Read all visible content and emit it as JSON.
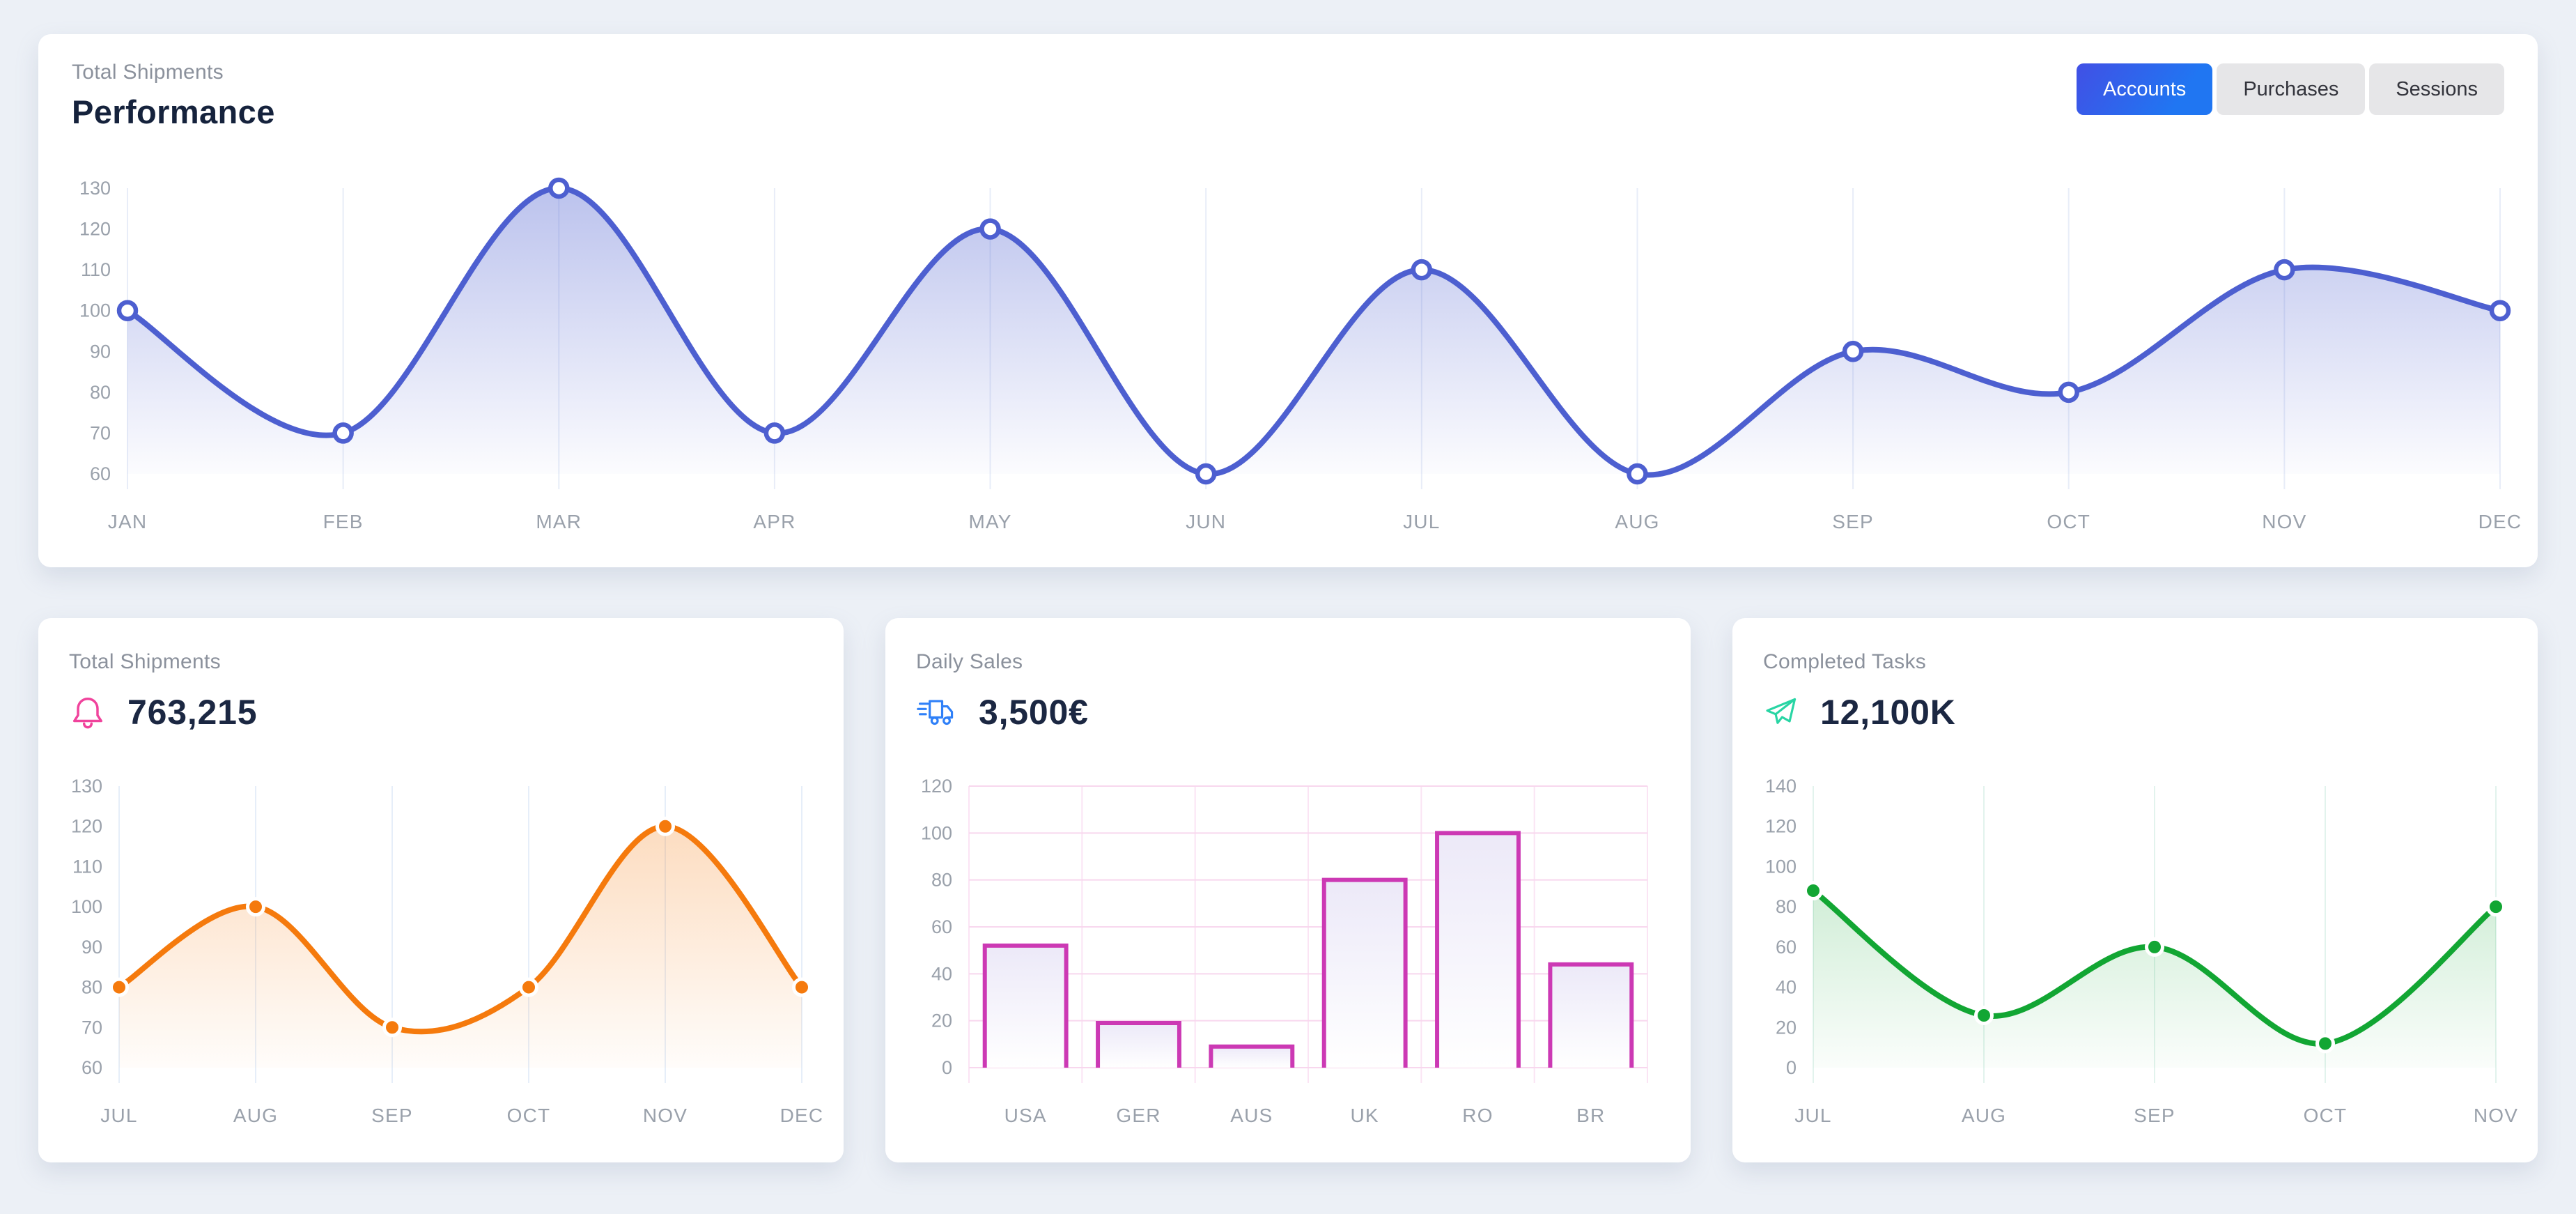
{
  "colors": {
    "label_gray": "#8b919c",
    "heading_navy": "#15223c",
    "value_navy": "#1b2742",
    "button_gradient_start": "#4150e5",
    "button_gradient_end": "#2076f2",
    "pink_icon": "#f0439c",
    "blue_icon": "#2f80f8",
    "teal_icon": "#28d5a4",
    "indigo_line": "#4d5fd0",
    "orange_line": "#f57a0d",
    "magenta_bar": "#cc39b4",
    "green_line": "#12a633"
  },
  "top_card": {
    "label": "Total Shipments",
    "title": "Performance",
    "buttons": [
      {
        "label": "Accounts",
        "active": true
      },
      {
        "label": "Purchases",
        "active": false
      },
      {
        "label": "Sessions",
        "active": false
      }
    ]
  },
  "cards": [
    {
      "label": "Total Shipments",
      "value": "763,215",
      "icon": "bell-icon"
    },
    {
      "label": "Daily Sales",
      "value": "3,500€",
      "icon": "shipping-truck-icon"
    },
    {
      "label": "Completed Tasks",
      "value": "12,100K",
      "icon": "paper-plane-icon"
    }
  ],
  "chart_data": [
    {
      "type": "line",
      "title": "Performance",
      "categories": [
        "JAN",
        "FEB",
        "MAR",
        "APR",
        "MAY",
        "JUN",
        "JUL",
        "AUG",
        "SEP",
        "OCT",
        "NOV",
        "DEC"
      ],
      "values": [
        100,
        70,
        130,
        70,
        120,
        60,
        110,
        60,
        90,
        80,
        110,
        100
      ],
      "ylim": [
        60,
        130
      ],
      "ytick": 10,
      "xlabel": "",
      "ylabel": "",
      "color": "#4d5fd0",
      "marker": "hollow",
      "fill_opacity": 0.38,
      "axis_color": "#9aa1ab",
      "grid": {
        "vertical": true,
        "horizontal": false,
        "color": "#e8edf8"
      },
      "legend": "none"
    },
    {
      "type": "line",
      "title": "Total Shipments",
      "categories": [
        "JUL",
        "AUG",
        "SEP",
        "OCT",
        "NOV",
        "DEC"
      ],
      "values": [
        80,
        100,
        70,
        80,
        120,
        80
      ],
      "ylim": [
        60,
        130
      ],
      "ytick": 10,
      "xlabel": "",
      "ylabel": "",
      "color": "#f57a0d",
      "marker": "solid",
      "fill_opacity": 0.3,
      "axis_color": "#9aa1ab",
      "grid": {
        "vertical": true,
        "horizontal": false,
        "color": "#e6eef9"
      },
      "legend": "none"
    },
    {
      "type": "bar",
      "title": "Daily Sales",
      "categories": [
        "USA",
        "GER",
        "AUS",
        "UK",
        "RO",
        "BR"
      ],
      "values": [
        52,
        19,
        9,
        80,
        100,
        44
      ],
      "ylim": [
        0,
        120
      ],
      "ytick": 20,
      "xlabel": "",
      "ylabel": "",
      "color": "#cc39b4",
      "axis_color": "#9aa1ab",
      "grid": {
        "vertical": true,
        "horizontal": true,
        "color": "#fbe4f4",
        "h_color": "#f8d7ee"
      },
      "legend": "none"
    },
    {
      "type": "line",
      "title": "Completed Tasks",
      "categories": [
        "JUL",
        "AUG",
        "SEP",
        "OCT",
        "NOV"
      ],
      "values": [
        88,
        26,
        60,
        12,
        80
      ],
      "ylim": [
        0,
        140
      ],
      "ytick": 20,
      "xlabel": "",
      "ylabel": "",
      "color": "#12a633",
      "marker": "solid",
      "fill_opacity": 0.3,
      "axis_color": "#9aa1ab",
      "grid": {
        "vertical": true,
        "horizontal": false,
        "color": "#e2f3ed"
      },
      "legend": "none"
    }
  ]
}
